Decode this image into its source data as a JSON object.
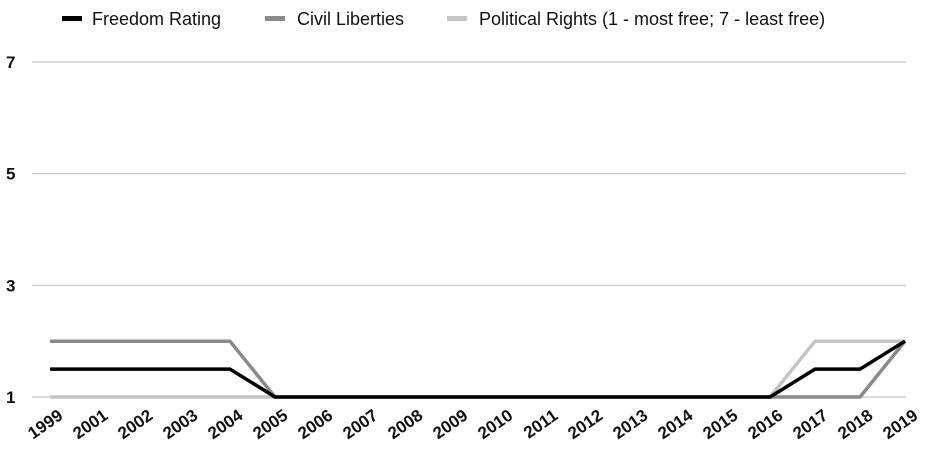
{
  "chart_data": {
    "type": "line",
    "title": "",
    "xlabel": "",
    "ylabel": "",
    "categories": [
      "1999",
      "2001",
      "2002",
      "2003",
      "2004",
      "2005",
      "2006",
      "2007",
      "2008",
      "2009",
      "2010",
      "2011",
      "2012",
      "2013",
      "2014",
      "2015",
      "2016",
      "2017",
      "2018",
      "2019"
    ],
    "ylim": [
      1,
      7
    ],
    "yticks": [
      "1",
      "3",
      "5",
      "7"
    ],
    "grid": "horizontal",
    "legend_position": "top",
    "series": [
      {
        "name": "Freedom Rating",
        "color": "#000000",
        "values": [
          1.5,
          1.5,
          1.5,
          1.5,
          1.5,
          1,
          1,
          1,
          1,
          1,
          1,
          1,
          1,
          1,
          1,
          1,
          1,
          1.5,
          1.5,
          2
        ]
      },
      {
        "name": "Civil Liberties",
        "color": "#8a8a8a",
        "values": [
          2,
          2,
          2,
          2,
          2,
          1,
          1,
          1,
          1,
          1,
          1,
          1,
          1,
          1,
          1,
          1,
          1,
          1,
          1,
          2
        ]
      },
      {
        "name": "Political Rights (1 - most free; 7 - least free)",
        "color": "#c4c4c4",
        "values": [
          1,
          1,
          1,
          1,
          1,
          1,
          1,
          1,
          1,
          1,
          1,
          1,
          1,
          1,
          1,
          1,
          1,
          2,
          2,
          2
        ]
      }
    ]
  }
}
